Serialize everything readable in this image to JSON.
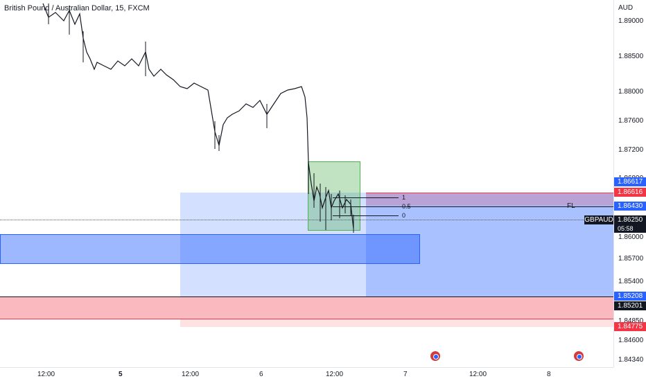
{
  "chart": {
    "title": "British Pound / Australian Dollar, 15, FXCM",
    "symbol": "GBPAUD",
    "currency": "AUD",
    "countdown": "05:58",
    "colors": {
      "candle": "#131722",
      "blue_zone": "#2962ff",
      "red_zone": "#f23645",
      "green_zone": "#4caf50"
    }
  },
  "price_scale": {
    "ticks": [
      "1.89000",
      "1.88500",
      "1.88000",
      "1.87600",
      "1.87200",
      "1.86800",
      "1.86000",
      "1.85700",
      "1.85400",
      "1.84850",
      "1.84600",
      "1.84340"
    ],
    "tags": [
      {
        "value": "1.86617",
        "color": "#2962ff"
      },
      {
        "value": "1.86616",
        "color": "#f23645"
      },
      {
        "value": "1.86430",
        "color": "#2962ff"
      },
      {
        "value": "1.86250",
        "color": "#131722"
      },
      {
        "value": "1.85208",
        "color": "#2962ff"
      },
      {
        "value": "1.85201",
        "color": "#131722"
      },
      {
        "value": "1.84775",
        "color": "#f23645"
      }
    ]
  },
  "time_scale": {
    "ticks": [
      "12:00",
      "5",
      "12:00",
      "6",
      "12:00",
      "7",
      "12:00",
      "8"
    ]
  },
  "fib": {
    "levels": [
      "1",
      "0.5",
      "0"
    ],
    "label": "FL"
  }
}
